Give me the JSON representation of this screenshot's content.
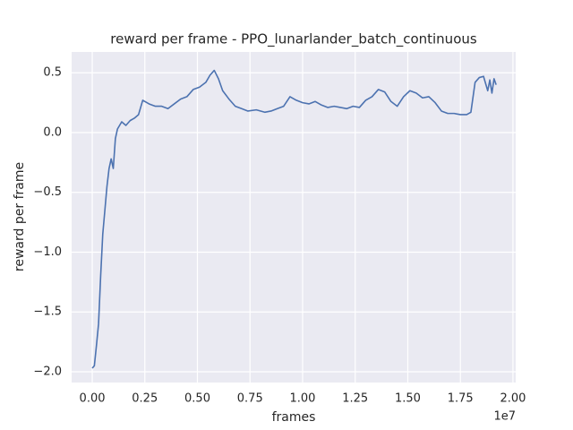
{
  "chart_data": {
    "type": "line",
    "title": "reward per frame - PPO_lunarlander_batch_continuous",
    "x_label": "frames",
    "y_label": "reward per frame",
    "x_offset_label": "1e7",
    "grid": true,
    "xlim": [
      -0.098,
      2.013
    ],
    "ylim": [
      -2.09,
      0.674
    ],
    "xticks": [
      {
        "value": 0,
        "label": "0.00"
      },
      {
        "value": 0.25,
        "label": "0.25"
      },
      {
        "value": 0.5,
        "label": "0.50"
      },
      {
        "value": 0.75,
        "label": "0.75"
      },
      {
        "value": 1,
        "label": "1.00"
      },
      {
        "value": 1.25,
        "label": "1.25"
      },
      {
        "value": 1.5,
        "label": "1.50"
      },
      {
        "value": 1.75,
        "label": "1.75"
      },
      {
        "value": 2,
        "label": "2.00"
      }
    ],
    "yticks": [
      {
        "value": -2,
        "label": "−2.0"
      },
      {
        "value": -1.5,
        "label": "−1.5"
      },
      {
        "value": -1,
        "label": "−1.0"
      },
      {
        "value": -0.5,
        "label": "−0.5"
      },
      {
        "value": 0,
        "label": "0.0"
      },
      {
        "value": 0.5,
        "label": "0.5"
      }
    ],
    "series": [
      {
        "name": "reward per frame",
        "color": "#4c72b0",
        "x": [
          0,
          0.01,
          0.02,
          0.03,
          0.04,
          0.05,
          0.06,
          0.07,
          0.08,
          0.09,
          0.1,
          0.11,
          0.12,
          0.14,
          0.16,
          0.18,
          0.2,
          0.22,
          0.24,
          0.27,
          0.3,
          0.33,
          0.36,
          0.39,
          0.42,
          0.45,
          0.48,
          0.51,
          0.54,
          0.56,
          0.58,
          0.6,
          0.62,
          0.65,
          0.68,
          0.71,
          0.74,
          0.78,
          0.82,
          0.85,
          0.88,
          0.91,
          0.94,
          0.97,
          1.0,
          1.03,
          1.06,
          1.09,
          1.12,
          1.15,
          1.18,
          1.21,
          1.24,
          1.27,
          1.3,
          1.33,
          1.36,
          1.39,
          1.42,
          1.45,
          1.48,
          1.51,
          1.54,
          1.57,
          1.6,
          1.63,
          1.66,
          1.69,
          1.72,
          1.75,
          1.78,
          1.8,
          1.82,
          1.84,
          1.86,
          1.88,
          1.89,
          1.9,
          1.91,
          1.92
        ],
        "values": [
          -1.97,
          -1.95,
          -1.78,
          -1.6,
          -1.2,
          -0.85,
          -0.65,
          -0.45,
          -0.3,
          -0.22,
          -0.3,
          -0.05,
          0.03,
          0.09,
          0.06,
          0.1,
          0.12,
          0.15,
          0.27,
          0.24,
          0.22,
          0.22,
          0.2,
          0.24,
          0.28,
          0.3,
          0.36,
          0.38,
          0.42,
          0.48,
          0.52,
          0.45,
          0.35,
          0.28,
          0.22,
          0.2,
          0.18,
          0.19,
          0.17,
          0.18,
          0.2,
          0.22,
          0.3,
          0.27,
          0.25,
          0.24,
          0.26,
          0.23,
          0.21,
          0.22,
          0.21,
          0.2,
          0.22,
          0.21,
          0.27,
          0.3,
          0.36,
          0.34,
          0.26,
          0.22,
          0.3,
          0.35,
          0.33,
          0.29,
          0.3,
          0.25,
          0.18,
          0.16,
          0.16,
          0.15,
          0.15,
          0.17,
          0.42,
          0.46,
          0.47,
          0.35,
          0.44,
          0.33,
          0.45,
          0.4
        ]
      }
    ]
  }
}
